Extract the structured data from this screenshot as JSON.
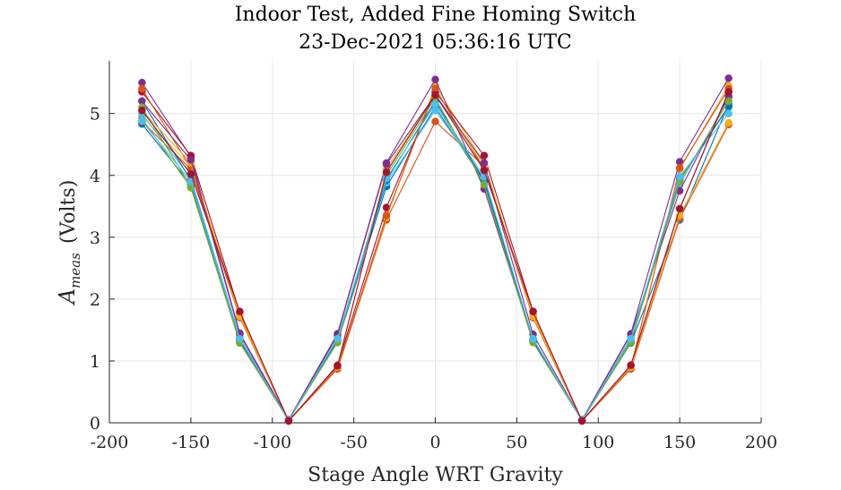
{
  "chart_data": {
    "type": "line",
    "title": [
      "Indoor Test, Added Fine Homing Switch",
      "23-Dec-2021 05:36:16 UTC"
    ],
    "xlabel": "Stage Angle WRT Gravity",
    "ylabel_main": "A",
    "ylabel_sub": "meas",
    "ylabel_unit": "(Volts)",
    "xlim": [
      -200,
      200
    ],
    "ylim": [
      0,
      5.85
    ],
    "xticks": [
      -200,
      -150,
      -100,
      -50,
      0,
      50,
      100,
      150,
      200
    ],
    "yticks": [
      0,
      1,
      2,
      3,
      4,
      5
    ],
    "grid": true,
    "marker": "circle",
    "x": [
      -180,
      -150,
      -120,
      -90,
      -60,
      -30,
      0,
      30,
      60,
      90,
      120,
      150,
      180
    ],
    "series": [
      {
        "color": "#0072bd",
        "values": [
          4.83,
          3.85,
          1.32,
          0.04,
          1.3,
          3.82,
          5.1,
          3.9,
          1.3,
          0.04,
          1.29,
          3.28,
          5.15
        ]
      },
      {
        "color": "#d95319",
        "values": [
          4.87,
          4.1,
          1.7,
          0.03,
          0.87,
          3.28,
          4.87,
          4.15,
          1.7,
          0.03,
          0.87,
          3.3,
          4.82
        ]
      },
      {
        "color": "#edb120",
        "values": [
          4.95,
          4.15,
          1.72,
          0.04,
          0.89,
          3.32,
          5.45,
          4.2,
          1.72,
          0.04,
          0.9,
          4.1,
          5.45
        ]
      },
      {
        "color": "#7e2f8e",
        "values": [
          5.5,
          4.3,
          1.45,
          0.05,
          1.44,
          4.2,
          5.55,
          3.78,
          1.32,
          0.05,
          1.44,
          4.22,
          5.57
        ]
      },
      {
        "color": "#77ac30",
        "values": [
          4.92,
          3.8,
          1.29,
          0.04,
          1.32,
          3.95,
          5.15,
          3.92,
          1.34,
          0.04,
          1.33,
          3.95,
          5.1
        ]
      },
      {
        "color": "#4dbeee",
        "values": [
          5.0,
          3.95,
          1.38,
          0.04,
          1.38,
          3.88,
          5.05,
          3.95,
          1.36,
          0.04,
          1.38,
          3.85,
          5.25
        ]
      },
      {
        "color": "#a2142f",
        "values": [
          5.35,
          4.32,
          1.78,
          0.03,
          0.93,
          3.48,
          5.35,
          4.32,
          1.8,
          0.03,
          0.93,
          3.46,
          5.35
        ]
      },
      {
        "color": "#0072bd",
        "values": [
          5.2,
          3.92,
          1.34,
          0.04,
          1.34,
          3.92,
          5.2,
          3.92,
          1.34,
          0.04,
          1.3,
          3.92,
          5.12
        ]
      },
      {
        "color": "#d95319",
        "values": [
          5.4,
          4.12,
          1.75,
          0.04,
          0.88,
          3.35,
          5.4,
          4.1,
          1.75,
          0.04,
          0.88,
          4.12,
          5.4
        ]
      },
      {
        "color": "#edb120",
        "values": [
          5.05,
          4.2,
          1.74,
          0.04,
          0.9,
          4.1,
          5.3,
          4.15,
          1.74,
          0.04,
          0.9,
          3.35,
          4.85
        ]
      },
      {
        "color": "#7e2f8e",
        "values": [
          5.2,
          4.25,
          1.43,
          0.04,
          1.42,
          4.18,
          5.3,
          4.2,
          1.43,
          0.04,
          1.43,
          3.75,
          5.28
        ]
      },
      {
        "color": "#77ac30",
        "values": [
          5.1,
          3.82,
          1.3,
          0.04,
          1.3,
          4.0,
          5.25,
          3.85,
          1.3,
          0.04,
          1.3,
          3.9,
          5.2
        ]
      },
      {
        "color": "#4dbeee",
        "values": [
          4.88,
          3.9,
          1.36,
          0.04,
          1.36,
          3.95,
          5.15,
          3.98,
          1.36,
          0.04,
          1.36,
          3.98,
          5.0
        ]
      },
      {
        "color": "#a2142f",
        "values": [
          5.05,
          4.02,
          1.8,
          0.03,
          0.92,
          4.05,
          5.3,
          4.08,
          1.8,
          0.03,
          0.93,
          3.46,
          5.35
        ]
      }
    ]
  }
}
